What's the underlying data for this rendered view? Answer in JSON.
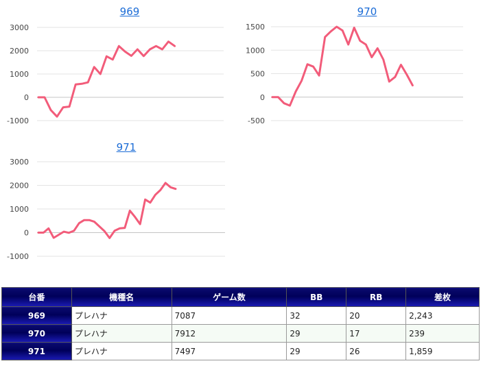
{
  "charts": [
    {
      "title": "969"
    },
    {
      "title": "970"
    },
    {
      "title": "971"
    }
  ],
  "chart_data": [
    {
      "type": "line",
      "title": "969",
      "ylim": [
        -1000,
        3000
      ],
      "yticks": [
        -1000,
        0,
        1000,
        2000,
        3000
      ],
      "line_color": "#f25c7a",
      "values": [
        0,
        0,
        -550,
        -830,
        -430,
        -400,
        550,
        580,
        640,
        1300,
        1000,
        1760,
        1620,
        2200,
        1960,
        1780,
        2060,
        1770,
        2060,
        2200,
        2060,
        2390,
        2200
      ]
    },
    {
      "type": "line",
      "title": "970",
      "ylim": [
        -500,
        1500
      ],
      "yticks": [
        -500,
        0,
        500,
        1000,
        1500
      ],
      "line_color": "#f25c7a",
      "values": [
        0,
        0,
        -130,
        -180,
        120,
        350,
        700,
        650,
        460,
        1280,
        1400,
        1500,
        1420,
        1120,
        1480,
        1200,
        1120,
        850,
        1040,
        800,
        330,
        430,
        690,
        480,
        250
      ]
    },
    {
      "type": "line",
      "title": "971",
      "ylim": [
        -1000,
        3000
      ],
      "yticks": [
        -1000,
        0,
        1000,
        2000,
        3000
      ],
      "line_color": "#f25c7a",
      "values": [
        0,
        0,
        180,
        -220,
        -90,
        40,
        -10,
        80,
        400,
        530,
        530,
        460,
        260,
        60,
        -230,
        80,
        180,
        200,
        930,
        660,
        360,
        1400,
        1270,
        1600,
        1800,
        2100,
        1920,
        1850
      ]
    }
  ],
  "table": {
    "headers": [
      "台番",
      "機種名",
      "ゲーム数",
      "BB",
      "RB",
      "差枚"
    ],
    "rows": [
      [
        "969",
        "プレハナ",
        "7087",
        "32",
        "20",
        "2,243"
      ],
      [
        "970",
        "プレハナ",
        "7912",
        "29",
        "17",
        "239"
      ],
      [
        "971",
        "プレハナ",
        "7497",
        "29",
        "26",
        "1,859"
      ]
    ]
  }
}
